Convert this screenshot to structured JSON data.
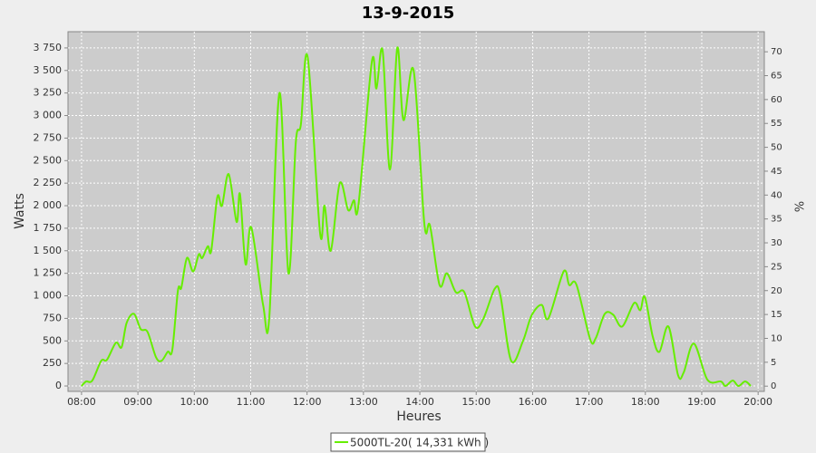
{
  "chart_data": {
    "type": "line",
    "title": "13-9-2015",
    "x_label": "Heures",
    "y_label": "Watts",
    "y2_label": "%",
    "x": [
      8.0,
      8.08,
      8.19,
      8.35,
      8.45,
      8.61,
      8.71,
      8.8,
      8.93,
      9.05,
      9.17,
      9.32,
      9.42,
      9.53,
      9.61,
      9.71,
      9.77,
      9.87,
      9.98,
      10.08,
      10.14,
      10.24,
      10.3,
      10.41,
      10.49,
      10.61,
      10.75,
      10.81,
      10.91,
      11.01,
      11.22,
      11.33,
      11.51,
      11.67,
      11.8,
      11.89,
      12.01,
      12.23,
      12.31,
      12.42,
      12.58,
      12.73,
      12.83,
      12.91,
      13.15,
      13.23,
      13.34,
      13.47,
      13.6,
      13.71,
      13.89,
      14.08,
      14.18,
      14.35,
      14.48,
      14.64,
      14.79,
      14.98,
      15.13,
      15.33,
      15.43,
      15.62,
      15.83,
      15.98,
      16.16,
      16.28,
      16.55,
      16.65,
      16.78,
      17.02,
      17.12,
      17.28,
      17.43,
      17.59,
      17.8,
      17.91,
      17.99,
      18.13,
      18.25,
      18.41,
      18.58,
      18.68,
      18.86,
      19.1,
      19.34,
      19.42,
      19.55,
      19.65,
      19.77,
      19.87
    ],
    "series": [
      {
        "name": "5000TL-20( 14,331 kWh )",
        "color": "#66ee00",
        "values": [
          0,
          50,
          60,
          280,
          290,
          480,
          430,
          700,
          800,
          630,
          600,
          320,
          280,
          380,
          400,
          1060,
          1090,
          1420,
          1270,
          1460,
          1420,
          1550,
          1500,
          2100,
          2000,
          2350,
          1820,
          2130,
          1350,
          1760,
          900,
          760,
          3250,
          1250,
          2700,
          2900,
          3650,
          1700,
          2000,
          1500,
          2250,
          1950,
          2060,
          2000,
          3600,
          3300,
          3720,
          2400,
          3750,
          2950,
          3500,
          1800,
          1780,
          1120,
          1250,
          1040,
          1040,
          660,
          750,
          1080,
          1000,
          280,
          500,
          780,
          900,
          750,
          1270,
          1120,
          1120,
          520,
          530,
          800,
          790,
          660,
          920,
          840,
          990,
          550,
          380,
          660,
          120,
          150,
          470,
          70,
          50,
          0,
          60,
          0,
          50,
          0
        ]
      }
    ],
    "xlim": [
      7.76,
      20.11
    ],
    "ylim": [
      -60,
      3930
    ],
    "y2lim": [
      -1.1,
      74.2
    ],
    "xticks": [
      {
        "value": 8,
        "label": "08:00"
      },
      {
        "value": 9,
        "label": "09:00"
      },
      {
        "value": 10,
        "label": "10:00"
      },
      {
        "value": 11,
        "label": "11:00"
      },
      {
        "value": 12,
        "label": "12:00"
      },
      {
        "value": 13,
        "label": "13:00"
      },
      {
        "value": 14,
        "label": "14:00"
      },
      {
        "value": 15,
        "label": "15:00"
      },
      {
        "value": 16,
        "label": "16:00"
      },
      {
        "value": 17,
        "label": "17:00"
      },
      {
        "value": 18,
        "label": "18:00"
      },
      {
        "value": 19,
        "label": "19:00"
      },
      {
        "value": 20,
        "label": "20:00"
      }
    ],
    "yticks": [
      0,
      250,
      500,
      750,
      {
        "value": 1000,
        "label": "1 000"
      },
      {
        "value": 1250,
        "label": "1 250"
      },
      {
        "value": 1500,
        "label": "1 500"
      },
      {
        "value": 1750,
        "label": "1 750"
      },
      {
        "value": 2000,
        "label": "2 000"
      },
      {
        "value": 2250,
        "label": "2 250"
      },
      {
        "value": 2500,
        "label": "2 500"
      },
      {
        "value": 2750,
        "label": "2 750"
      },
      {
        "value": 3000,
        "label": "3 000"
      },
      {
        "value": 3250,
        "label": "3 250"
      },
      {
        "value": 3500,
        "label": "3 500"
      },
      {
        "value": 3750,
        "label": "3 750"
      }
    ],
    "y2ticks": [
      0,
      5,
      10,
      15,
      20,
      25,
      30,
      35,
      40,
      45,
      50,
      55,
      60,
      65,
      70
    ],
    "grid": true
  }
}
